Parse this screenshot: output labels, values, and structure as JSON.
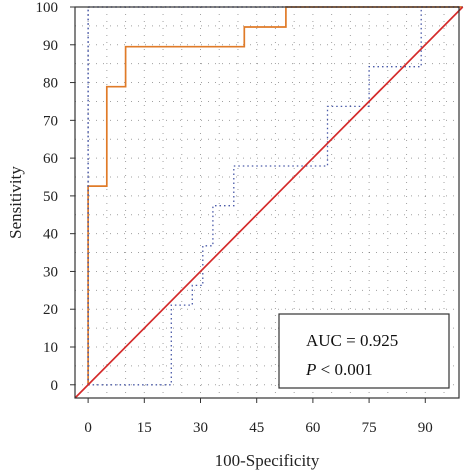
{
  "chart_data": {
    "type": "line",
    "xlabel": "100-Specificity",
    "ylabel": "Sensitivity",
    "xlim": [
      -3.5,
      99
    ],
    "ylim": [
      -3.5,
      100
    ],
    "xticks": [
      0,
      15,
      30,
      45,
      60,
      75,
      90
    ],
    "xtick_labels": [
      "0",
      "15",
      "30",
      "45",
      "60",
      "75",
      "90"
    ],
    "yticks": [
      0,
      10,
      20,
      30,
      40,
      50,
      60,
      70,
      80,
      90,
      100
    ],
    "ytick_labels": [
      "0",
      "10",
      "20",
      "30",
      "40",
      "50",
      "60",
      "70",
      "80",
      "90",
      "100"
    ],
    "grid": "dotted",
    "series": [
      {
        "style": "step",
        "color": "#e07b28",
        "points": [
          [
            0,
            0
          ],
          [
            0,
            52.6
          ],
          [
            5,
            52.6
          ],
          [
            5,
            78.9
          ],
          [
            10,
            78.9
          ],
          [
            10,
            89.5
          ],
          [
            41.7,
            89.5
          ],
          [
            41.7,
            94.7
          ],
          [
            52.8,
            94.7
          ],
          [
            52.8,
            100
          ],
          [
            100,
            100
          ]
        ]
      },
      {
        "style": "dotted",
        "color": "#4a5aa8",
        "points": [
          [
            0,
            0
          ],
          [
            0,
            100
          ],
          [
            100,
            100
          ]
        ]
      },
      {
        "style": "dotted",
        "color": "#4a5aa8",
        "points": [
          [
            0,
            0
          ],
          [
            22.2,
            0
          ],
          [
            22.2,
            21.1
          ],
          [
            27.8,
            21.1
          ],
          [
            27.8,
            26.3
          ],
          [
            30.6,
            26.3
          ],
          [
            30.6,
            36.8
          ],
          [
            33.3,
            36.8
          ],
          [
            33.3,
            47.4
          ],
          [
            38.9,
            47.4
          ],
          [
            38.9,
            57.9
          ],
          [
            63.9,
            57.9
          ],
          [
            63.9,
            73.7
          ],
          [
            75,
            73.7
          ],
          [
            75,
            84.2
          ],
          [
            88.9,
            84.2
          ],
          [
            88.9,
            100
          ],
          [
            100,
            100
          ]
        ]
      },
      {
        "style": "dotted",
        "color": "#4a5aa8",
        "points": [
          [
            0,
            0
          ],
          [
            0,
            100
          ],
          [
            2.8,
            100
          ],
          [
            2.8,
            100
          ],
          [
            100,
            100
          ]
        ]
      },
      {
        "style": "solid",
        "color": "#d42a2a",
        "points": [
          [
            -3.5,
            -3.5
          ],
          [
            100,
            100
          ]
        ]
      }
    ],
    "annotation": {
      "auc_label": "AUC = 0.925",
      "p_symbol": "P",
      "p_rest": " < 0.001"
    }
  }
}
